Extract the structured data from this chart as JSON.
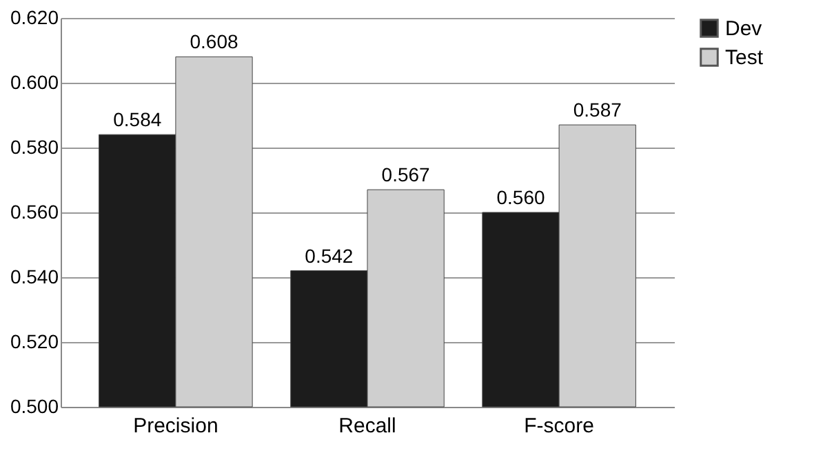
{
  "chart_data": {
    "type": "bar",
    "categories": [
      "Precision",
      "Recall",
      "F-score"
    ],
    "series": [
      {
        "name": "Dev",
        "color": "#1c1c1c",
        "values": [
          0.584,
          0.542,
          0.56
        ],
        "value_labels": [
          "0.584",
          "0.542",
          "0.560"
        ]
      },
      {
        "name": "Test",
        "color": "#cfcfcf",
        "values": [
          0.608,
          0.567,
          0.587
        ],
        "value_labels": [
          "0.608",
          "0.567",
          "0.587"
        ]
      }
    ],
    "ylim": [
      0.5,
      0.62
    ],
    "yticks": [
      {
        "value": 0.5,
        "label": "0.500"
      },
      {
        "value": 0.52,
        "label": "0.520"
      },
      {
        "value": 0.54,
        "label": "0.540"
      },
      {
        "value": 0.56,
        "label": "0.560"
      },
      {
        "value": 0.58,
        "label": "0.580"
      },
      {
        "value": 0.6,
        "label": "0.600"
      },
      {
        "value": 0.62,
        "label": "0.620"
      }
    ],
    "grid": "y",
    "legend": "right"
  }
}
